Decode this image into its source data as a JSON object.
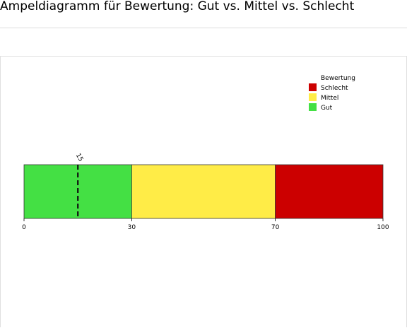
{
  "page_title": "Ampeldiagramm für Bewertung: Gut vs. Mittel vs. Schlecht",
  "chart_data": {
    "type": "bar",
    "orientation": "horizontal-stacked-bands",
    "xlim": [
      0,
      100
    ],
    "bands": [
      {
        "name": "Gut",
        "start": 0,
        "end": 30,
        "color": "#44e044"
      },
      {
        "name": "Mittel",
        "start": 30,
        "end": 70,
        "color": "#ffec47"
      },
      {
        "name": "Schlecht",
        "start": 70,
        "end": 100,
        "color": "#cc0000"
      }
    ],
    "ticks": [
      "0",
      "30",
      "70",
      "100"
    ],
    "tick_values": [
      0,
      30,
      70,
      100
    ],
    "marker": {
      "value": 15,
      "label": "15",
      "style": "dashed"
    },
    "legend": {
      "title": "Bewertung",
      "position": "top-right",
      "entries": [
        {
          "label": "Schlecht",
          "color": "#cc0000"
        },
        {
          "label": "Mittel",
          "color": "#ffec47"
        },
        {
          "label": "Gut",
          "color": "#44e044"
        }
      ]
    }
  }
}
